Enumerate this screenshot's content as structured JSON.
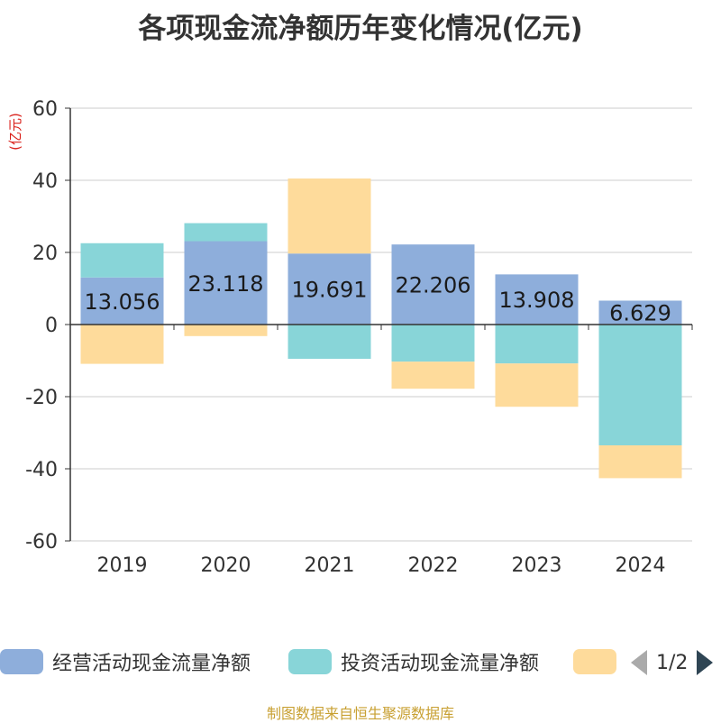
{
  "chart_data": {
    "type": "bar",
    "stacked": true,
    "title": "各项现金流净额历年变化情况(亿元)",
    "ylabel": "(亿元)",
    "categories": [
      "2019",
      "2020",
      "2021",
      "2022",
      "2023",
      "2024"
    ],
    "ylim": [
      -60,
      60
    ],
    "yticks": [
      60,
      40,
      20,
      0,
      -20,
      -40,
      -60
    ],
    "grid": true,
    "series": [
      {
        "name": "经营活动现金流量净额",
        "color": "#8eaedb",
        "values": [
          13.056,
          23.118,
          19.691,
          22.206,
          13.908,
          6.629
        ],
        "data_labels": [
          "13.056",
          "23.118",
          "19.691",
          "22.206",
          "13.908",
          "6.629"
        ]
      },
      {
        "name": "投资活动现金流量净额",
        "color": "#88d5d8",
        "values": [
          9.5,
          5.0,
          -9.5,
          -10.3,
          -10.8,
          -33.5
        ]
      },
      {
        "name": "",
        "color": "#fedb9b",
        "values": [
          -10.9,
          -3.2,
          20.8,
          -7.5,
          -12.0,
          -9.1
        ]
      }
    ],
    "legend_position": "bottom"
  },
  "legend": {
    "page": "1/2"
  },
  "footer": "制图数据来自恒生聚源数据库"
}
